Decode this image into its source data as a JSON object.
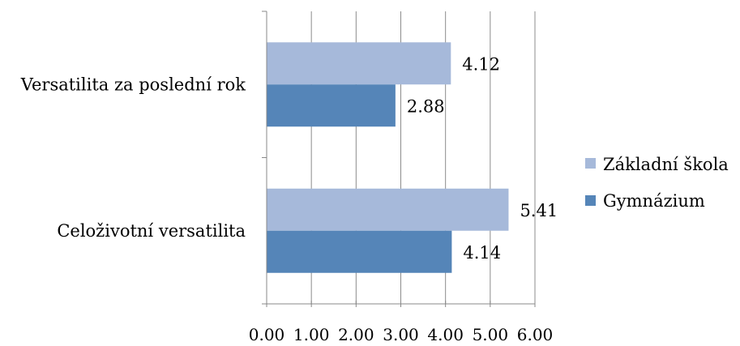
{
  "chart_data": {
    "type": "bar",
    "orientation": "horizontal",
    "categories": [
      "Versatilita za poslední rok",
      "Celoživotní versatilita"
    ],
    "series": [
      {
        "name": "Základní škola",
        "values": [
          4.12,
          5.41
        ],
        "labels": [
          "4.12",
          "5.41"
        ],
        "color": "#a6b9da"
      },
      {
        "name": "Gymnázium",
        "values": [
          2.88,
          4.14
        ],
        "labels": [
          "2.88",
          "4.14"
        ],
        "color": "#5585b8"
      }
    ],
    "xlim": [
      0,
      6
    ],
    "xticks": [
      "0.00",
      "1.00",
      "2.00",
      "3.00",
      "4.00",
      "5.00",
      "6.00"
    ],
    "grid": true,
    "legend_position": "right"
  }
}
